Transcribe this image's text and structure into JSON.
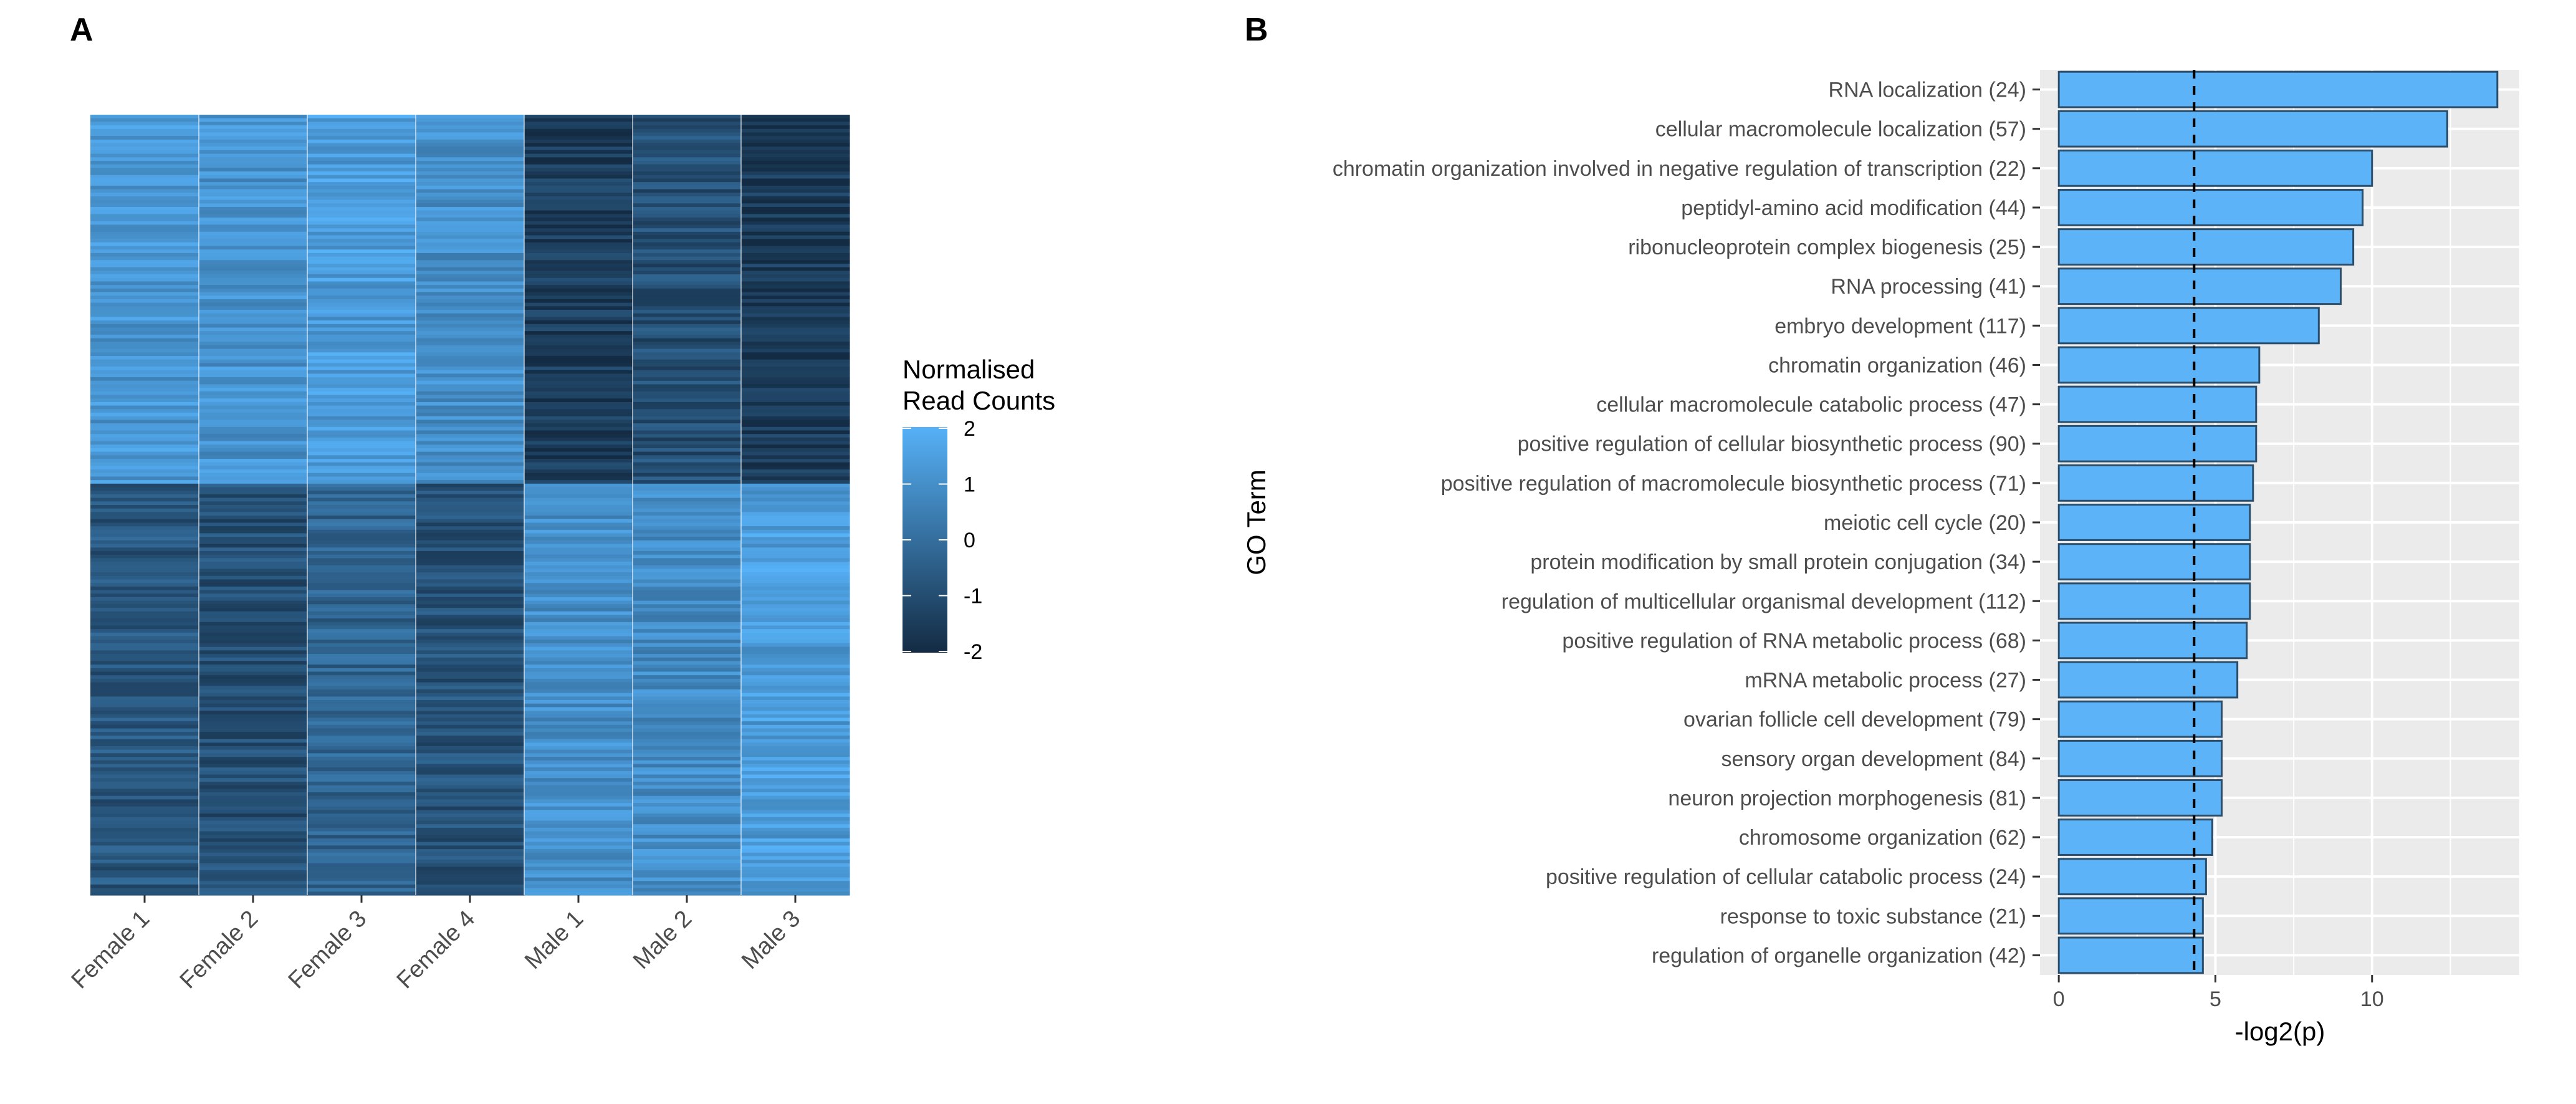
{
  "panels": {
    "a": "A",
    "b": "B"
  },
  "chart_data": [
    {
      "type": "heatmap",
      "panel": "A",
      "columns": [
        "Female 1",
        "Female 2",
        "Female 3",
        "Female 4",
        "Male 1",
        "Male 2",
        "Male 3"
      ],
      "legend": {
        "title_line1": "Normalised",
        "title_line2": "Read Counts",
        "ticks": [
          "2",
          "1",
          "0",
          "-1",
          "-2"
        ],
        "range": [
          -2,
          2
        ],
        "low_color": "#132b43",
        "high_color": "#56b1f7"
      },
      "blocks": [
        {
          "group": "female-up",
          "means": [
            1.2,
            1.1,
            1.4,
            1.0,
            -1.5,
            -0.9,
            -1.6
          ]
        },
        {
          "group": "male-up",
          "means": [
            -0.7,
            -0.9,
            -0.3,
            -0.8,
            1.0,
            0.9,
            1.4
          ]
        }
      ]
    },
    {
      "type": "bar",
      "panel": "B",
      "orientation": "horizontal",
      "categories": [
        "RNA localization (24)",
        "cellular macromolecule localization (57)",
        "chromatin organization involved in negative regulation of transcription (22)",
        "peptidyl-amino acid modification (44)",
        "ribonucleoprotein complex biogenesis (25)",
        "RNA processing (41)",
        "embryo development (117)",
        "chromatin organization (46)",
        "cellular macromolecule catabolic process (47)",
        "positive regulation of cellular biosynthetic process (90)",
        "positive regulation of macromolecule biosynthetic process (71)",
        "meiotic cell cycle (20)",
        "protein modification by small protein conjugation (34)",
        "regulation of multicellular organismal development (112)",
        "positive regulation of RNA metabolic process (68)",
        "mRNA metabolic process (27)",
        "ovarian follicle cell development (79)",
        "sensory organ development (84)",
        "neuron projection morphogenesis (81)",
        "chromosome organization (62)",
        "positive regulation of cellular catabolic process (24)",
        "response to toxic substance (21)",
        "regulation of organelle organization (42)"
      ],
      "values": [
        14.0,
        12.4,
        10.0,
        9.7,
        9.4,
        9.0,
        8.3,
        6.4,
        6.3,
        6.3,
        6.2,
        6.1,
        6.1,
        6.1,
        6.0,
        5.7,
        5.2,
        5.2,
        5.2,
        4.9,
        4.7,
        4.6,
        4.6
      ],
      "threshold": 4.32,
      "xlim": [
        -0.6,
        14.7
      ],
      "xticks": [
        "0",
        "5",
        "10"
      ],
      "xlabel": "-log2(p)",
      "ylabel": "GO Term",
      "bar_color": "#5cb3f7",
      "bar_edge_color": "#2a4e6c",
      "panel_background": "#ebebeb",
      "grid": true
    }
  ]
}
